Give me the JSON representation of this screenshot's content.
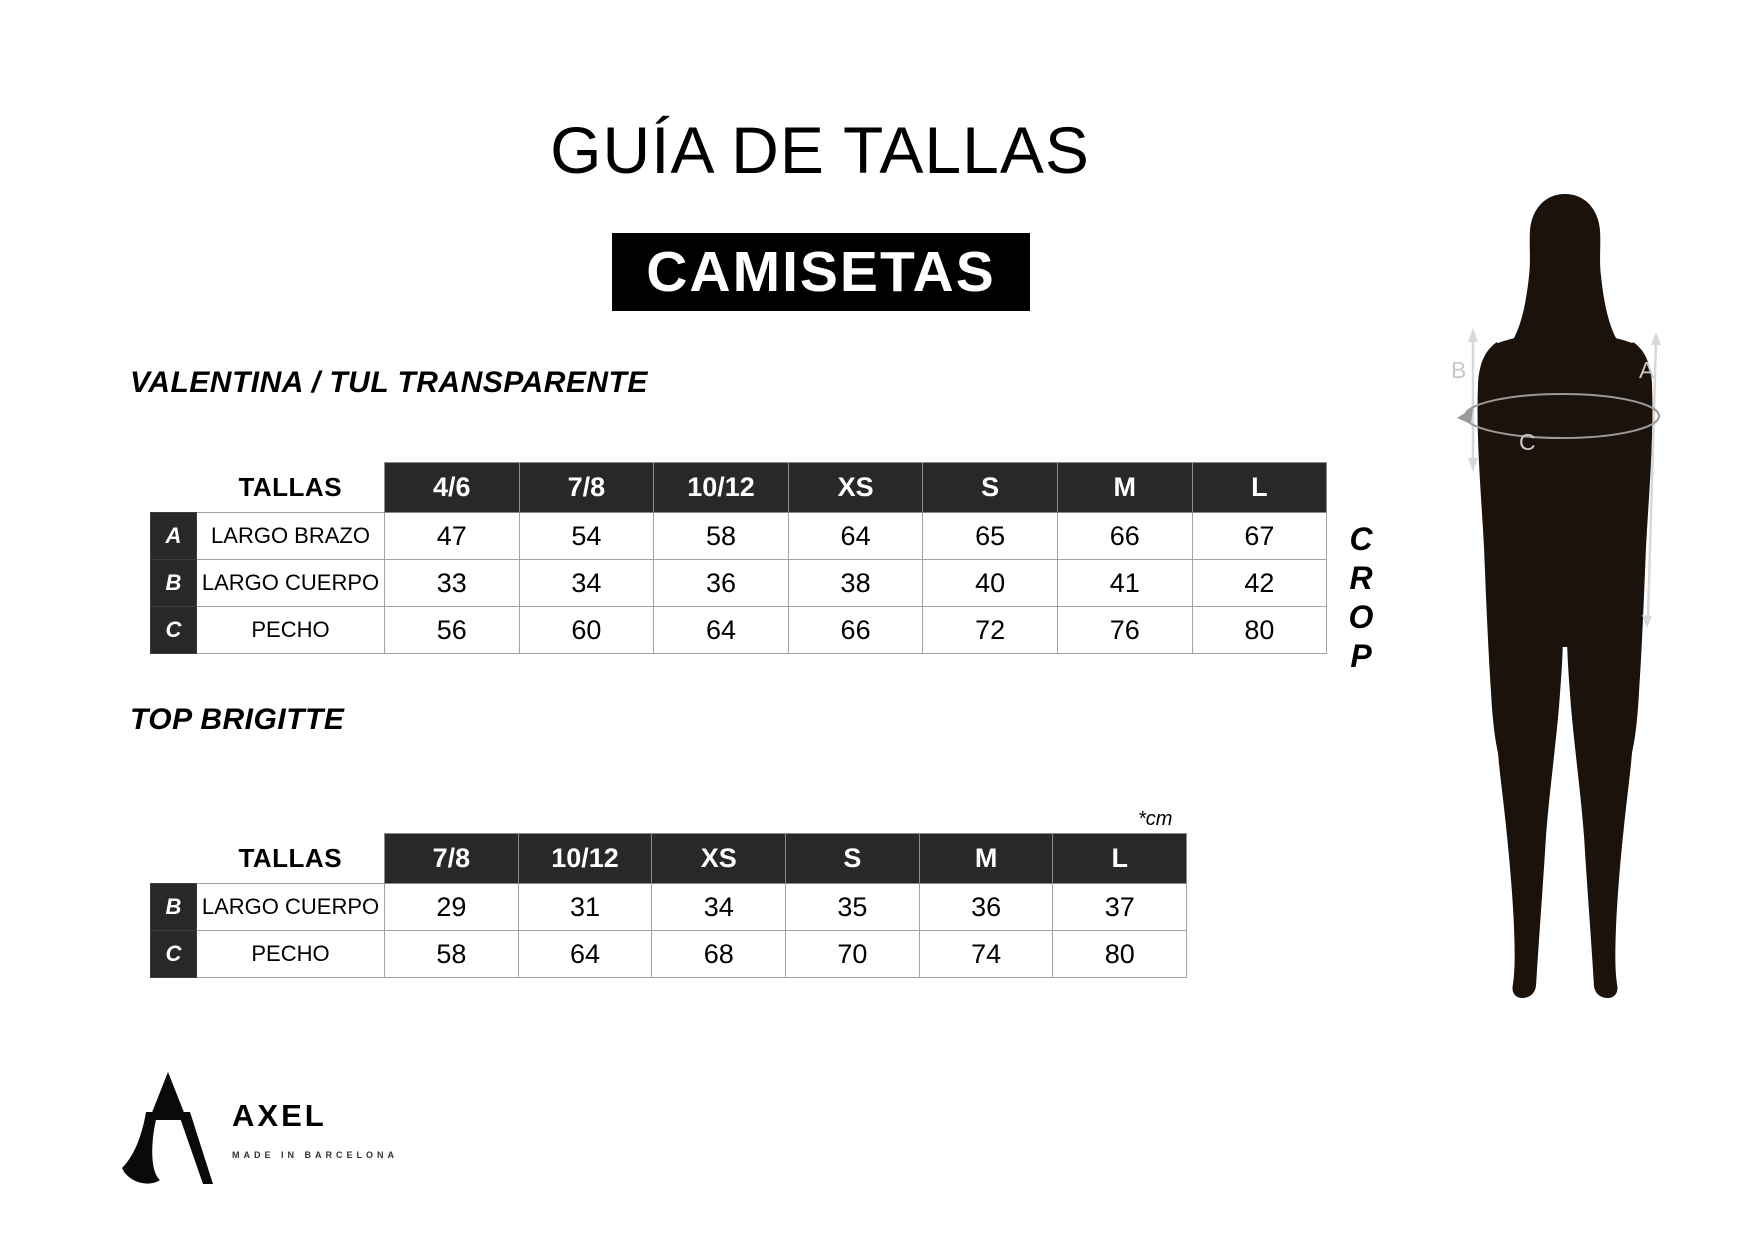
{
  "page": {
    "title": "GUÍA DE TALLAS",
    "subtitle": "CAMISETAS",
    "crop_label": "CROP",
    "unit_note": "*cm",
    "colors": {
      "subtitle_bg": "#000000",
      "table_header_bg": "#282828",
      "table_border": "#a3a3a3",
      "silhouette": "#1b120c",
      "annotation_line": "#d8d8d8",
      "annotation_label": "#c9c9c9"
    }
  },
  "tables": [
    {
      "section_title": "VALENTINA / TUL TRANSPARENTE",
      "header_label": "TALLAS",
      "sizes": [
        "4/6",
        "7/8",
        "10/12",
        "XS",
        "S",
        "M",
        "L"
      ],
      "rows": [
        {
          "letter": "A",
          "label": "LARGO BRAZO",
          "values": [
            "47",
            "54",
            "58",
            "64",
            "65",
            "66",
            "67"
          ]
        },
        {
          "letter": "B",
          "label": "LARGO CUERPO",
          "values": [
            "33",
            "34",
            "36",
            "38",
            "40",
            "41",
            "42"
          ]
        },
        {
          "letter": "C",
          "label": "PECHO",
          "values": [
            "56",
            "60",
            "64",
            "66",
            "72",
            "76",
            "80"
          ]
        }
      ]
    },
    {
      "section_title": "TOP BRIGITTE",
      "header_label": "TALLAS",
      "sizes": [
        "7/8",
        "10/12",
        "XS",
        "S",
        "M",
        "L"
      ],
      "rows": [
        {
          "letter": "B",
          "label": "LARGO CUERPO",
          "values": [
            "29",
            "31",
            "34",
            "35",
            "36",
            "37"
          ]
        },
        {
          "letter": "C",
          "label": "PECHO",
          "values": [
            "58",
            "64",
            "68",
            "70",
            "74",
            "80"
          ]
        }
      ]
    }
  ],
  "figure": {
    "labels": {
      "a": "A",
      "b": "B",
      "c": "C"
    }
  },
  "brand": {
    "name": "AXEL",
    "tagline": "MADE IN BARCELONA"
  }
}
